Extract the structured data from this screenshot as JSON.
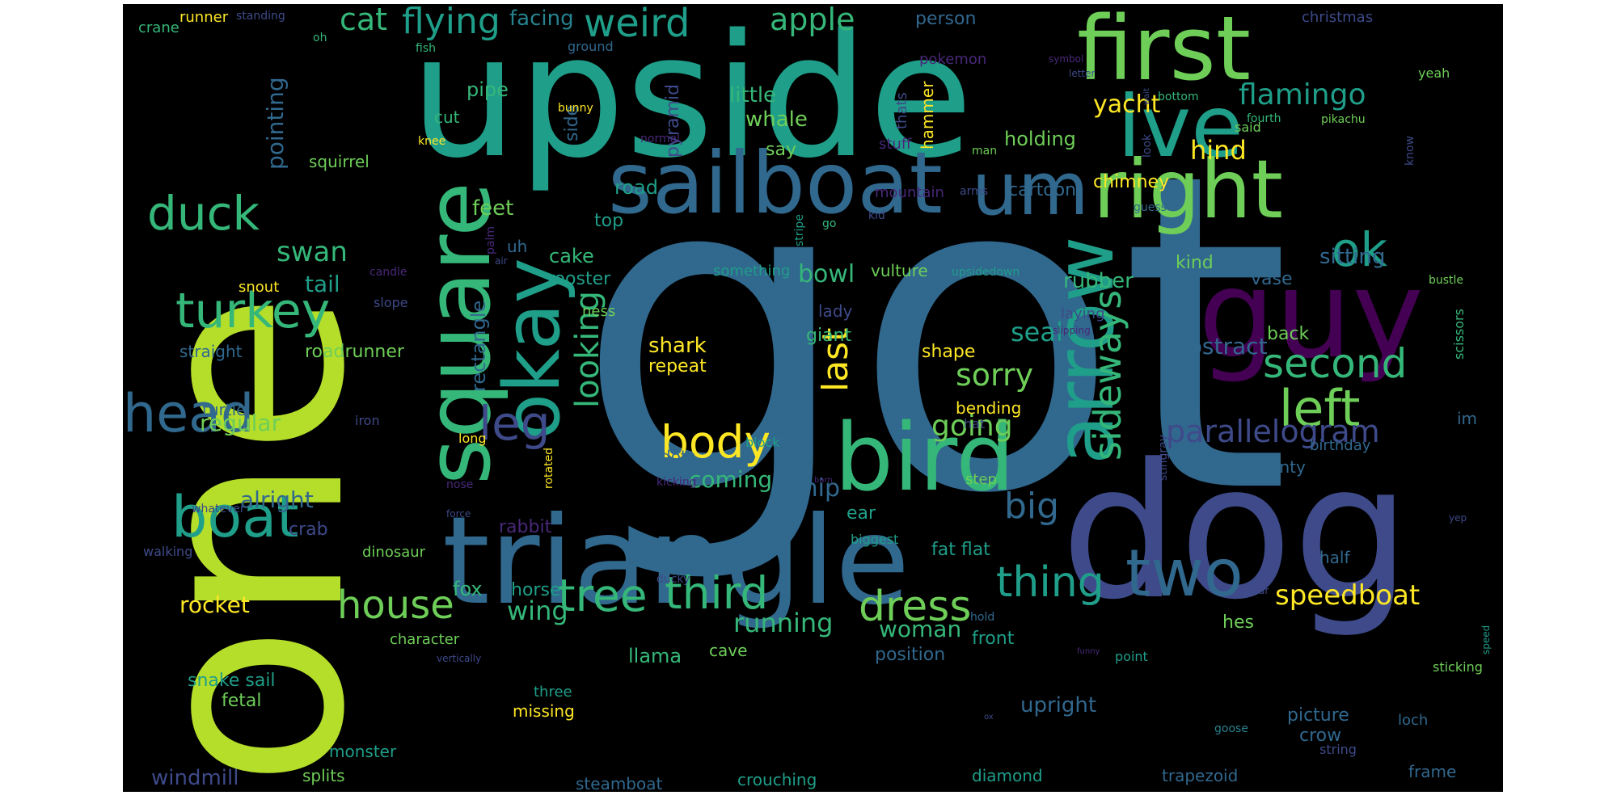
{
  "words": {
    "got": "got",
    "one": "one",
    "upside": "upside",
    "dog": "dog",
    "triangle": "triangle",
    "sailboat": "sailboat",
    "um": "um",
    "square": "square",
    "okay": "okay",
    "ive": "ive",
    "first": "first",
    "right": "right",
    "guy": "guy",
    "bird": "bird",
    "arrow": "arrow",
    "head": "head",
    "boat": "boat",
    "turkey": "turkey",
    "duck": "duck",
    "leg": "leg",
    "body": "body",
    "left": "left",
    "two": "two",
    "tree": "tree",
    "third": "third",
    "house": "house",
    "dress": "dress",
    "thing": "thing",
    "sideways": "sideways",
    "second": "second",
    "last": "last",
    "ok": "ok",
    "big": "big",
    "parallelogram": "parallelogram",
    "speedboat": "speedboat",
    "looking": "looking",
    "cat": "cat",
    "flying": "flying",
    "weird": "weird",
    "apple": "apple",
    "facing": "facing",
    "flamingo": "flamingo",
    "yacht": "yacht",
    "hind": "hind",
    "swan": "swan",
    "sorry": "sorry",
    "going": "going",
    "regular": "regular",
    "pointing": "pointing",
    "little": "little",
    "whale": "whale",
    "seal": "seal",
    "rocket": "rocket",
    "wing": "wing",
    "running": "running",
    "woman": "woman",
    "abstract": "abstract",
    "coming": "coming",
    "ship": "ship",
    "rubber": "rubber",
    "bowl": "bowl",
    "tail": "tail",
    "alright": "alright",
    "rectangle": "rectangle",
    "cake": "cake",
    "rooster": "rooster",
    "feet": "feet",
    "top": "top",
    "road": "road",
    "holding": "holding",
    "chimney": "chimney",
    "cartoon": "cartoon",
    "sitting": "sitting",
    "vase": "vase",
    "kind": "kind",
    "back": "back",
    "shark": "shark",
    "repeat": "repeat",
    "shape": "shape",
    "giant": "giant",
    "fox": "fox",
    "horse": "horse",
    "crab": "crab",
    "rabbit": "rabbit",
    "llama": "llama",
    "cave": "cave",
    "position": "position",
    "front": "front",
    "upright": "upright",
    "picture": "picture",
    "crow": "crow",
    "hes": "hes",
    "windmill": "windmill",
    "monster": "monster",
    "splits": "splits",
    "steamboat": "steamboat",
    "crouching": "crouching",
    "diamond": "diamond",
    "trapezoid": "trapezoid",
    "frame": "frame",
    "loch": "loch",
    "point": "point",
    "sticking": "sticking",
    "string": "string",
    "goose": "goose",
    "missing": "missing",
    "three": "three",
    "snake_sail": "snake sail",
    "fetal": "fetal",
    "character": "character",
    "dinosaur": "dinosaur",
    "fat_flat": "fat flat",
    "half": "half",
    "biggest": "biggest",
    "ear": "ear",
    "pointy": "pointy",
    "birthday": "birthday",
    "im": "im",
    "bending": "bending",
    "hat": "hat",
    "step": "step",
    "dots": "dots",
    "block": "block",
    "long": "long",
    "iron": "iron",
    "turtle": "turtle",
    "straight": "straight",
    "roadrunner": "roadrunner",
    "squirrel": "squirrel",
    "snout": "snout",
    "slope": "slope",
    "candle": "candle",
    "palm": "palm",
    "air": "air",
    "uh": "uh",
    "ness": "ness",
    "lady": "lady",
    "vulture": "vulture",
    "something": "something",
    "upsidedown": "upsidedown",
    "laying": "laying",
    "slipping": "slipping",
    "scissors": "scissors",
    "bustle": "bustle",
    "mountain": "mountain",
    "kid": "kid",
    "go": "go",
    "arms": "arms",
    "stripe": "stripe",
    "guess": "guess",
    "stuff": "stuff",
    "man": "man",
    "thats": "thats",
    "hammer": "hammer",
    "say": "say",
    "pyramid": "pyramid",
    "side": "side",
    "pipe": "pipe",
    "cut": "cut",
    "knee": "knee",
    "bunny": "bunny",
    "ground": "ground",
    "fish": "fish",
    "oh": "oh",
    "crane": "crane",
    "runner": "runner",
    "standing": "standing",
    "person": "person",
    "pokemon": "pokemon",
    "christmas": "christmas",
    "yeah": "yeah",
    "letter": "letter",
    "symbol": "symbol",
    "wait": "wait",
    "bottom": "bottom",
    "normal": "normal",
    "said": "said",
    "fourth": "fourth",
    "pikachu": "pikachu",
    "know": "know",
    "look": "look",
    "stingray": "stingray",
    "rotated": "rotated",
    "kicking": "kicking",
    "barn": "barn",
    "nose": "nose",
    "force": "force",
    "whatever": "whatever",
    "walking": "walking",
    "ducky": "ducky",
    "vertically": "vertically",
    "hold": "hold",
    "ox": "ox",
    "funny": "funny",
    "hear": "hear",
    "yep": "yep",
    "speed": "speed"
  },
  "colors": {
    "background": "#000000",
    "palette": [
      "#440154",
      "#482878",
      "#3e4a89",
      "#31688e",
      "#26828e",
      "#1f9e89",
      "#35b779",
      "#6ece58",
      "#b5de2b",
      "#fde725"
    ]
  }
}
